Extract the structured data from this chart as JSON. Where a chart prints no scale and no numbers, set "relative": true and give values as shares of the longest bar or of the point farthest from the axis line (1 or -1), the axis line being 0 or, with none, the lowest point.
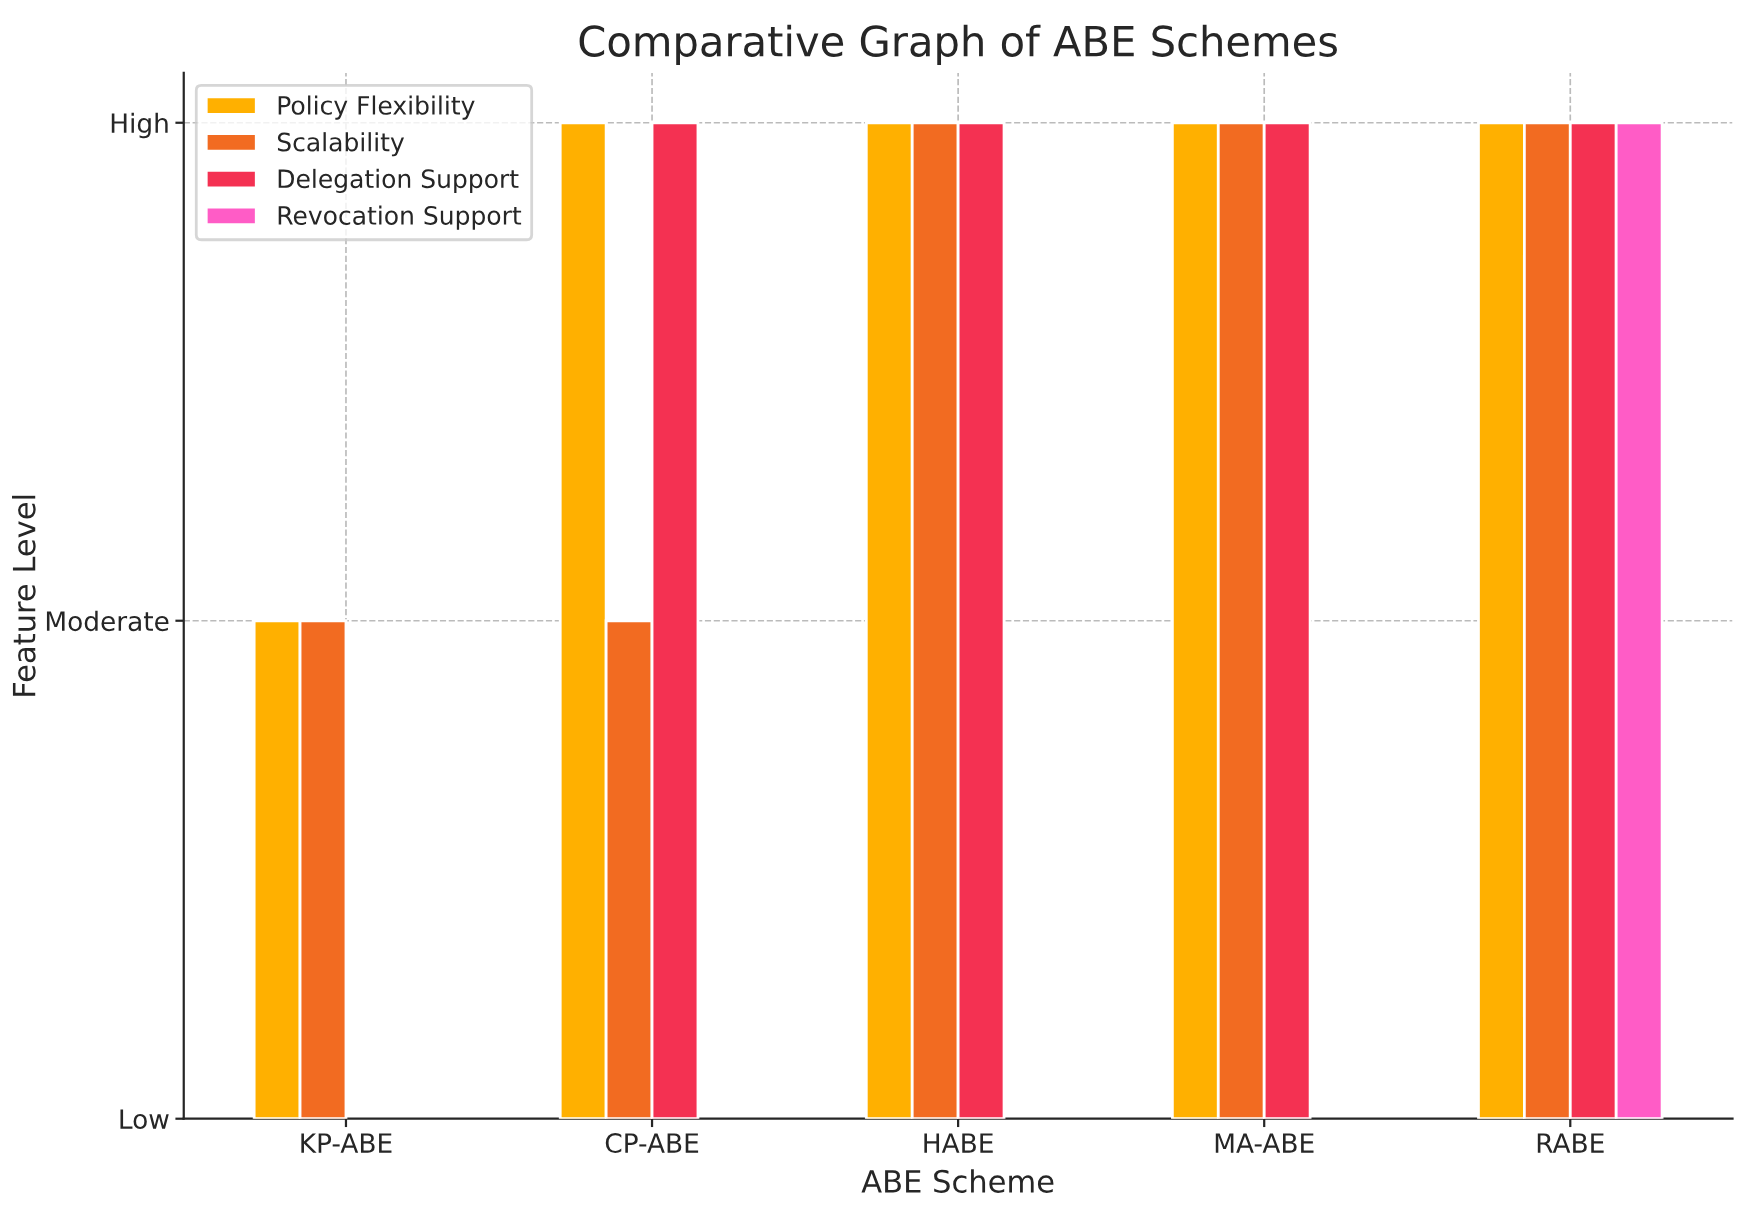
{
  "chart_data": {
    "type": "bar",
    "title": "Comparative Graph of ABE Schemes",
    "xlabel": "ABE Scheme",
    "ylabel": "Feature Level",
    "categories": [
      "KP-ABE",
      "CP-ABE",
      "HABE",
      "MA-ABE",
      "RABE"
    ],
    "relative": true,
    "series": [
      {
        "name": "Policy Flexibility",
        "color": "#ffb000",
        "values": [
          0.5,
          1,
          1,
          1,
          1
        ]
      },
      {
        "name": "Scalability",
        "color": "#f26b21",
        "values": [
          0.5,
          0.5,
          1,
          1,
          1
        ]
      },
      {
        "name": "Delegation Support",
        "color": "#f43152",
        "values": [
          null,
          1,
          1,
          1,
          1
        ]
      },
      {
        "name": "Revocation Support",
        "color": "#ff5cc6",
        "values": [
          null,
          null,
          null,
          null,
          1
        ]
      }
    ],
    "annotations": [
      "Low",
      "Moderate",
      "High"
    ],
    "grid": true,
    "legend": "top left"
  }
}
